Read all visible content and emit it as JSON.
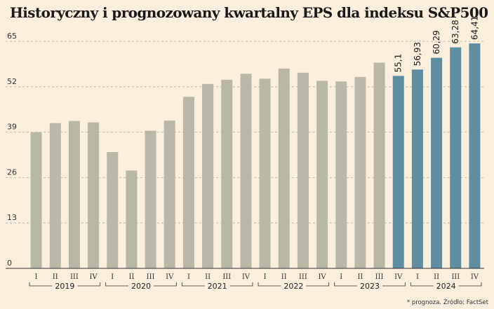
{
  "title": "Historyczny i prognozowany kwartalny EPS dla indeksu S&P500",
  "footnote": "* prognoza. Źródło: FactSet",
  "colors": {
    "background": "#faeedd",
    "historical": "#b8b7a8",
    "forecast": "#5f8ea0",
    "grid": "#b8ab98",
    "axis": "#333333"
  },
  "chart_data": {
    "type": "bar",
    "title": "Historyczny i prognozowany kwartalny EPS dla indeksu S&P500",
    "xlabel": "",
    "ylabel": "",
    "ylim": [
      0,
      65
    ],
    "yticks": [
      0,
      13,
      26,
      39,
      52,
      65
    ],
    "grid": "horizontal dashed",
    "categories": [
      "I",
      "II",
      "III",
      "IV",
      "I",
      "II",
      "III",
      "IV",
      "I",
      "II",
      "III",
      "IV",
      "I",
      "II",
      "III",
      "IV",
      "I",
      "II",
      "III",
      "IV",
      "I",
      "II",
      "III",
      "IV"
    ],
    "years": [
      "2019",
      "2020",
      "2021",
      "2022",
      "2023",
      "2024"
    ],
    "values": [
      39.0,
      41.6,
      42.2,
      41.8,
      33.3,
      28.0,
      39.4,
      42.3,
      49.1,
      52.8,
      54.0,
      55.7,
      54.3,
      57.2,
      56.0,
      53.7,
      53.5,
      54.8,
      58.9,
      55.1,
      56.93,
      60.29,
      63.28,
      64.41
    ],
    "forecast_from_index": 19,
    "data_labels": [
      {
        "index": 19,
        "text": "55,1"
      },
      {
        "index": 20,
        "text": "56,93"
      },
      {
        "index": 21,
        "text": "60,29"
      },
      {
        "index": 22,
        "text": "63,28"
      },
      {
        "index": 23,
        "text": "64,41"
      }
    ]
  }
}
